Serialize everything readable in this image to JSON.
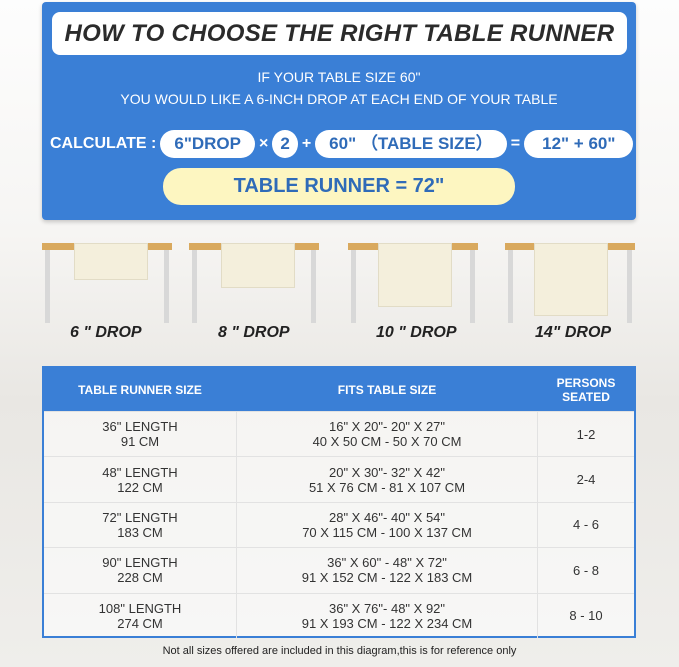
{
  "title": "HOW TO CHOOSE THE RIGHT TABLE RUNNER",
  "intro": [
    "IF YOUR TABLE SIZE 60\"",
    "YOU WOULD LIKE A 6-INCH DROP AT EACH END OF YOUR TABLE"
  ],
  "calc": {
    "label": "CALCULATE :",
    "drop": "6\"DROP",
    "times": "×",
    "two": "2",
    "plus": "+",
    "table": "60\" （TABLE SIZE）",
    "equals": "=",
    "sum": "12\" + 60\"",
    "result": "TABLE RUNNER = 72\""
  },
  "drops": [
    "6 \" DROP",
    "8 \" DROP",
    "10 \" DROP",
    "14\" DROP"
  ],
  "table": {
    "headers": [
      "TABLE RUNNER SIZE",
      "FITS TABLE SIZE",
      "PERSONS SEATED"
    ],
    "rows": [
      {
        "len": "36\" LENGTH",
        "cm": "91 CM",
        "fit_in": "16\" X 20\"- 20\" X 27\"",
        "fit_cm": "40 X 50 CM - 50 X 70 CM",
        "persons": "1-2"
      },
      {
        "len": "48\" LENGTH",
        "cm": "122 CM",
        "fit_in": "20\" X 30\"- 32\" X 42\"",
        "fit_cm": "51 X 76 CM - 81 X 107 CM",
        "persons": "2-4"
      },
      {
        "len": "72\" LENGTH",
        "cm": "183 CM",
        "fit_in": "28\" X 46\"- 40\" X 54\"",
        "fit_cm": "70 X 115 CM - 100 X 137 CM",
        "persons": "4 - 6"
      },
      {
        "len": "90\" LENGTH",
        "cm": "228 CM",
        "fit_in": "36\" X 60\" - 48\" X 72\"",
        "fit_cm": "91 X 152 CM - 122 X 183 CM",
        "persons": "6 - 8"
      },
      {
        "len": "108\" LENGTH",
        "cm": "274 CM",
        "fit_in": "36\" X 76\"- 48\" X 92\"",
        "fit_cm": "91 X 193 CM - 122 X 234 CM",
        "persons": "8 - 10"
      }
    ]
  },
  "footnote": "Not all sizes offered are included in this diagram,this is for reference only",
  "colors": {
    "blue": "#3a7fd6",
    "yellow": "#fdf6c1",
    "text_blue": "#2f6bb8"
  }
}
